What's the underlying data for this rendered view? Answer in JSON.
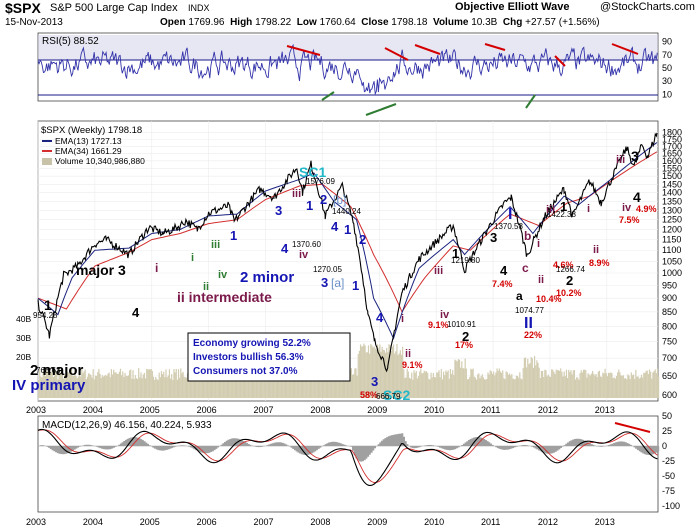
{
  "header": {
    "ticker": "$SPX",
    "name": "S&P 500 Large Cap Index",
    "exchange": "INDX",
    "date": "15-Nov-2013",
    "open_label": "Open",
    "open": "1769.96",
    "high_label": "High",
    "high": "1798.22",
    "low_label": "Low",
    "low": "1760.64",
    "close_label": "Close",
    "close": "1798.18",
    "volume_label": "Volume",
    "volume": "10.3B",
    "chg_label": "Chg",
    "chg": "+27.57 (+1.56%)",
    "watermark": "Objective Elliott Wave",
    "site": "@StockCharts.com"
  },
  "rsi_panel": {
    "label": "RSI(5) 88.52",
    "ticks": [
      "90",
      "70",
      "50",
      "30",
      "10"
    ],
    "levels": [
      90,
      70,
      50,
      30,
      10
    ],
    "bands": [
      70,
      30
    ]
  },
  "price_panel": {
    "legend": {
      "main": "$SPX (Weekly) 1798.18",
      "ema13": "EMA(13) 1727.13",
      "ema34": "EMA(34) 1661.29",
      "volume": "Volume 10,340,986,880"
    },
    "ticks": [
      "1800",
      "1750",
      "1700",
      "1650",
      "1600",
      "1550",
      "1500",
      "1450",
      "1400",
      "1350",
      "1300",
      "1250",
      "1200",
      "1150",
      "1100",
      "1050",
      "1000",
      "950",
      "900",
      "850",
      "800",
      "750",
      "700",
      "650",
      "600"
    ],
    "volume_ticks": [
      "40B",
      "30B",
      "20B"
    ]
  },
  "macd_panel": {
    "label": "MACD(12,26,9) 46.156, 40.224, 5.933",
    "ticks": [
      "50",
      "25",
      "0",
      "-25",
      "-50",
      "-75",
      "-100"
    ]
  },
  "x_axis": {
    "years": [
      "2003",
      "2004",
      "2005",
      "2006",
      "2007",
      "2008",
      "2009",
      "2010",
      "2011",
      "2012",
      "2013"
    ]
  },
  "annotations": {
    "major3": "major 3",
    "four_a": "4",
    "one_a": "1",
    "two_major": "2 major",
    "iv_primary": "IV primary",
    "ii_intermediate": "ii intermediate",
    "two_minor": "2 minor",
    "i_a": "i",
    "ii_a": "ii",
    "iii_a": "iii",
    "iv_a": "iv",
    "one_b": "1",
    "three_a": "3",
    "four_b": "4",
    "sc1": "SC1",
    "iii_b": "iii",
    "iv_b": "iv",
    "b_bracket": "[b]",
    "a_bracket": "[a]",
    "one_c": "1",
    "two_a": "2",
    "two_b": "2",
    "three_b": "3",
    "four_c": "4",
    "one_d": "1",
    "three_c": "3",
    "sc2": "SC2",
    "i_b": "i",
    "ii_b": "ii",
    "iii_c": "iii",
    "iv_c": "iv",
    "one_e": "1",
    "two_c": "2",
    "three_d": "3",
    "I_major": "I",
    "a_lbl": "a",
    "b_lbl": "b",
    "c_lbl": "c",
    "i_c": "i",
    "ii_c": "ii",
    "II_major": "II",
    "one_f": "1",
    "iii_d": "iii",
    "i_d": "i",
    "ii_d": "ii",
    "iii_e": "iii",
    "three_e": "3",
    "iv_d": "iv",
    "four_d": "4",
    "four_e": "4",
    "pct58": "58%",
    "pct91a": "9.1%",
    "pct91b": "9.1%",
    "pct17": "17%",
    "pct74": "7.4%",
    "pct104": "10.4%",
    "pct102": "10.2%",
    "pct22": "22%",
    "pct46": "4.6%",
    "pct89": "8.9%",
    "pct75": "7.5%",
    "pct49": "4.9%",
    "v954": "954.28",
    "v768": "768.63",
    "v1576": "1576.09",
    "v1440": "1440.24",
    "v1370a": "1370.60",
    "v1270": "1270.05",
    "v666": "666.79",
    "v1219": "1219.80",
    "v1010": "1010.91",
    "v1370b": "1370.58",
    "v1422": "1422.38",
    "v1266": "1266.74",
    "v1074": "1074.77"
  },
  "info_box": {
    "line1": "Economy growing 52.2%",
    "line2": "Investors bullish 56.3%",
    "line3": "Consumers not 37.0%"
  },
  "colors": {
    "price": "#000000",
    "ema13": "#1a237e",
    "ema34": "#d32f2f",
    "volume": "#c8c3a8",
    "rsi": "#3333aa",
    "blue_label": "#1515b4",
    "purple_label": "#7b1a4a",
    "green_label": "#2e7d32",
    "cyan_label": "#20b7c9",
    "red_pct": "#d40000"
  },
  "chart_data": {
    "type": "line",
    "title": "$SPX S&P 500 Large Cap Index INDX",
    "x_range": [
      2003.0,
      2013.9
    ],
    "y_range": [
      600,
      1820
    ],
    "y_scale": "log",
    "series": [
      {
        "name": "$SPX (Weekly)",
        "points": [
          [
            2003.0,
            880
          ],
          [
            2003.15,
            800
          ],
          [
            2003.2,
            768.63
          ],
          [
            2003.45,
            990
          ],
          [
            2003.7,
            1030
          ],
          [
            2004.0,
            1130
          ],
          [
            2004.2,
            1150
          ],
          [
            2004.6,
            1080
          ],
          [
            2004.95,
            1210
          ],
          [
            2005.2,
            1180
          ],
          [
            2005.45,
            1210
          ],
          [
            2005.6,
            1245
          ],
          [
            2005.8,
            1200
          ],
          [
            2006.0,
            1285
          ],
          [
            2006.35,
            1325
          ],
          [
            2006.45,
            1240
          ],
          [
            2006.9,
            1420
          ],
          [
            2007.15,
            1370.6
          ],
          [
            2007.55,
            1555
          ],
          [
            2007.65,
            1405
          ],
          [
            2007.8,
            1576.09
          ],
          [
            2008.05,
            1270.05
          ],
          [
            2008.35,
            1440.24
          ],
          [
            2008.55,
            1230
          ],
          [
            2008.8,
            840
          ],
          [
            2008.92,
            750
          ],
          [
            2009.15,
            666.79
          ],
          [
            2009.4,
            920
          ],
          [
            2009.7,
            1060
          ],
          [
            2010.3,
            1219.8
          ],
          [
            2010.5,
            1010.91
          ],
          [
            2011.2,
            1340
          ],
          [
            2011.32,
            1370.58
          ],
          [
            2011.6,
            1074.77
          ],
          [
            2011.9,
            1260
          ],
          [
            2012.25,
            1422.38
          ],
          [
            2012.4,
            1266.74
          ],
          [
            2012.7,
            1470
          ],
          [
            2012.9,
            1343
          ],
          [
            2013.35,
            1687
          ],
          [
            2013.48,
            1560
          ],
          [
            2013.62,
            1709
          ],
          [
            2013.72,
            1627
          ],
          [
            2013.88,
            1798.18
          ]
        ]
      },
      {
        "name": "EMA(13)",
        "points": [
          [
            2003.0,
            900
          ],
          [
            2003.35,
            840
          ],
          [
            2003.6,
            980
          ],
          [
            2004.0,
            1100
          ],
          [
            2004.6,
            1110
          ],
          [
            2005.0,
            1180
          ],
          [
            2005.5,
            1200
          ],
          [
            2006.0,
            1270
          ],
          [
            2006.5,
            1280
          ],
          [
            2007.0,
            1410
          ],
          [
            2007.6,
            1480
          ],
          [
            2007.85,
            1520
          ],
          [
            2008.2,
            1350
          ],
          [
            2008.6,
            1250
          ],
          [
            2008.9,
            900
          ],
          [
            2009.25,
            760
          ],
          [
            2009.7,
            1020
          ],
          [
            2010.3,
            1150
          ],
          [
            2010.5,
            1080
          ],
          [
            2011.3,
            1320
          ],
          [
            2011.7,
            1180
          ],
          [
            2012.25,
            1380
          ],
          [
            2012.5,
            1330
          ],
          [
            2013.0,
            1460
          ],
          [
            2013.88,
            1727.13
          ]
        ]
      },
      {
        "name": "EMA(34)",
        "points": [
          [
            2003.0,
            900
          ],
          [
            2003.5,
            860
          ],
          [
            2004.0,
            1030
          ],
          [
            2004.6,
            1090
          ],
          [
            2005.0,
            1150
          ],
          [
            2005.5,
            1180
          ],
          [
            2006.0,
            1230
          ],
          [
            2006.5,
            1250
          ],
          [
            2007.0,
            1360
          ],
          [
            2007.6,
            1440
          ],
          [
            2008.0,
            1450
          ],
          [
            2008.5,
            1320
          ],
          [
            2008.9,
            1080
          ],
          [
            2009.4,
            850
          ],
          [
            2009.8,
            980
          ],
          [
            2010.3,
            1120
          ],
          [
            2010.6,
            1100
          ],
          [
            2011.3,
            1280
          ],
          [
            2011.8,
            1220
          ],
          [
            2012.3,
            1340
          ],
          [
            2012.7,
            1380
          ],
          [
            2013.2,
            1500
          ],
          [
            2013.88,
            1661.29
          ]
        ]
      }
    ],
    "volume_ticks": [
      "40B",
      "30B",
      "20B"
    ]
  }
}
